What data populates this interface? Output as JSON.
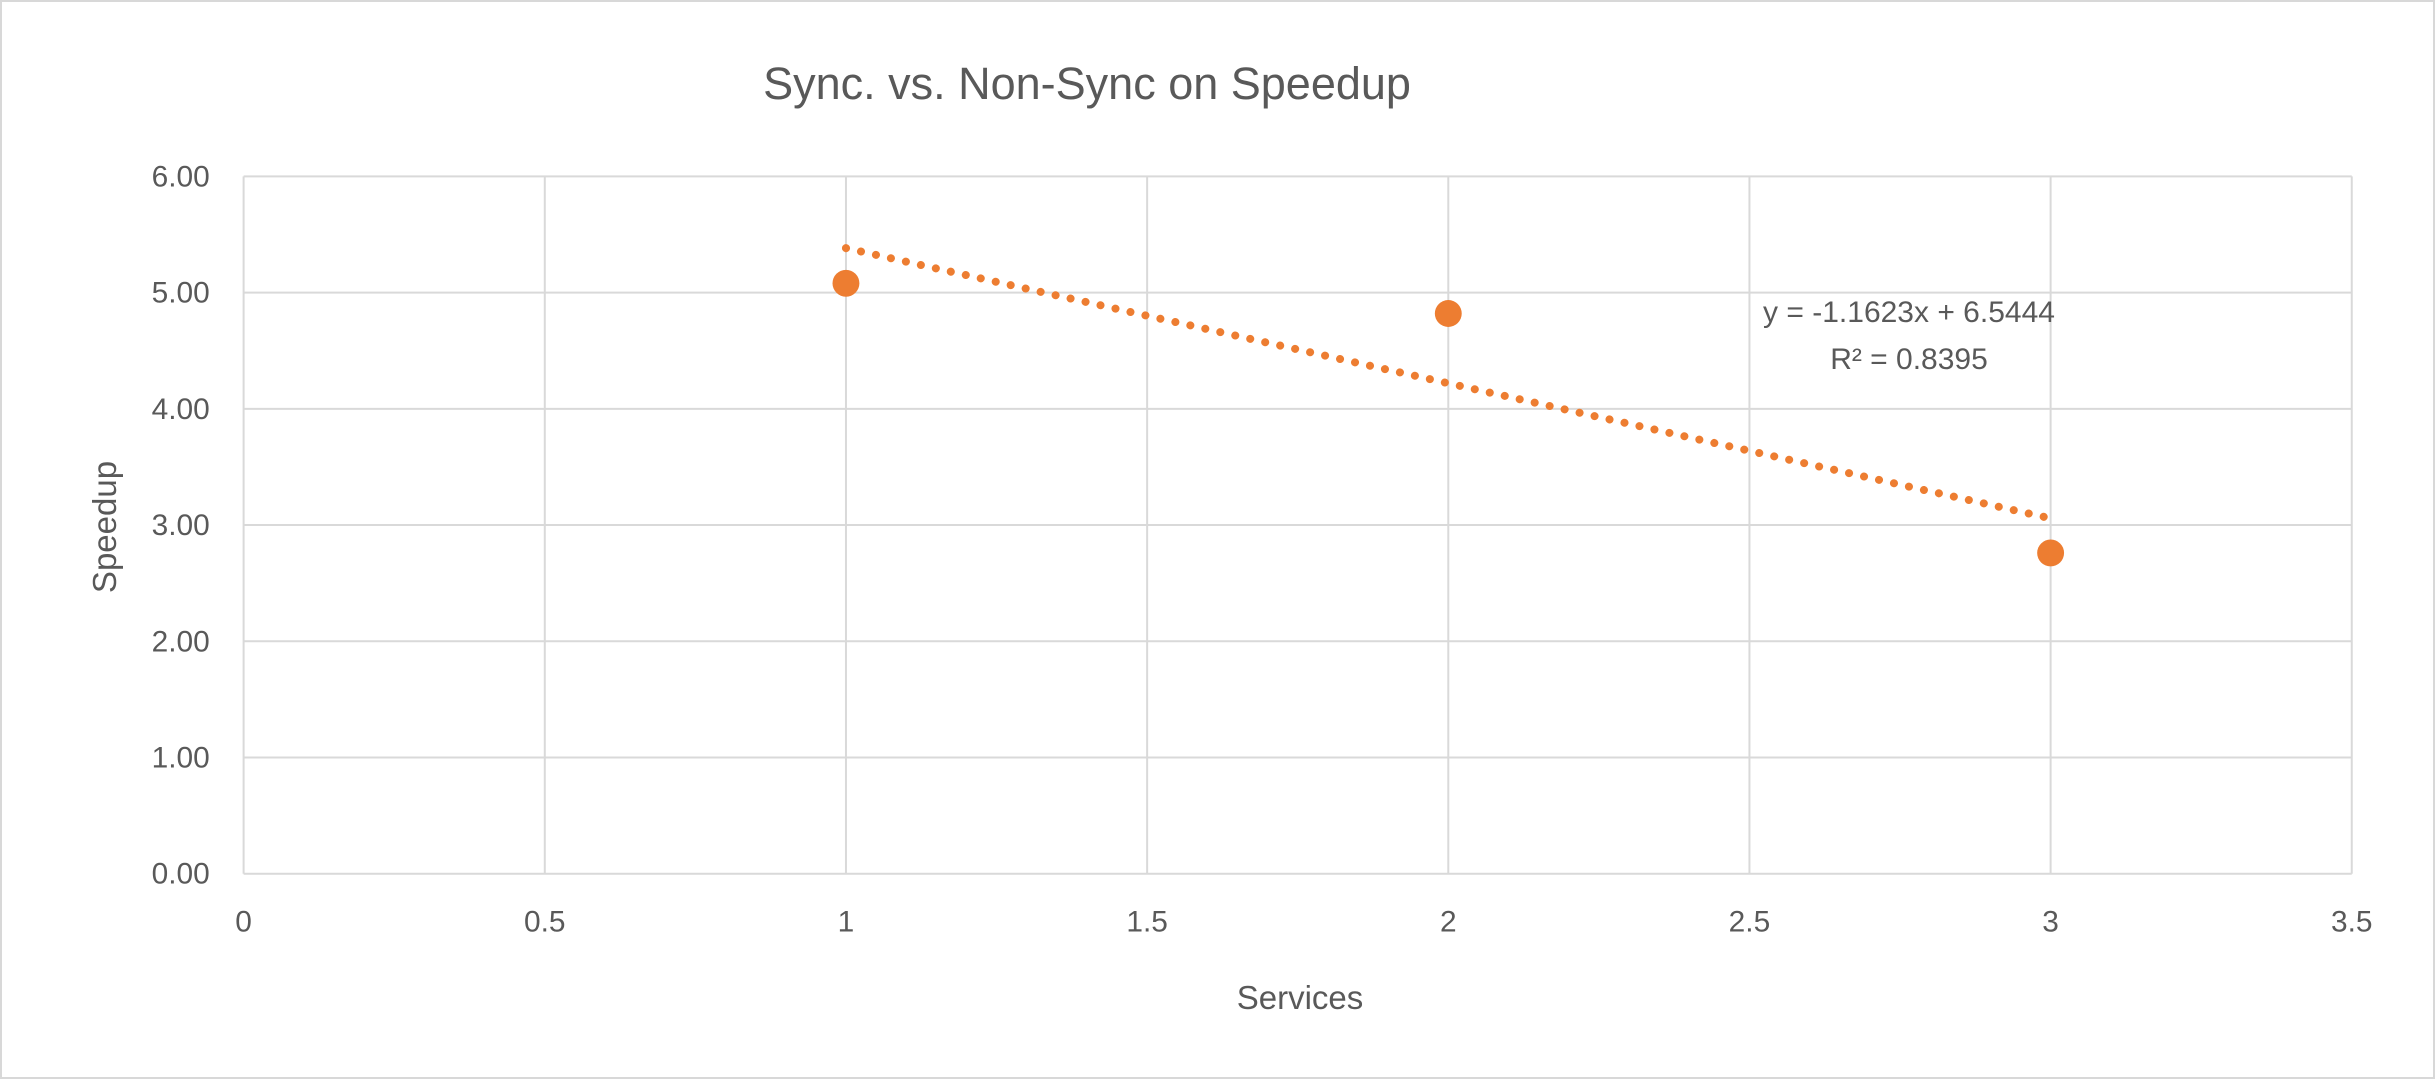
{
  "chart_data": {
    "type": "scatter",
    "title": "Sync. vs. Non-Sync on Speedup",
    "xlabel": "Services",
    "ylabel": "Speedup",
    "points": [
      {
        "x": 1,
        "y": 5.08
      },
      {
        "x": 2,
        "y": 4.82
      },
      {
        "x": 3,
        "y": 2.76
      }
    ],
    "xlim": [
      0,
      3.5
    ],
    "ylim": [
      0,
      6
    ],
    "x_ticks": [
      "0",
      "0.5",
      "1",
      "1.5",
      "2",
      "2.5",
      "3",
      "3.5"
    ],
    "y_ticks": [
      "0.00",
      "1.00",
      "2.00",
      "3.00",
      "4.00",
      "5.00",
      "6.00"
    ],
    "grid": true,
    "legend": "none",
    "trendline": {
      "type": "linear",
      "slope": -1.1623,
      "intercept": 6.5444,
      "r2": 0.8395,
      "x_start": 1,
      "x_end": 3,
      "style": "dotted",
      "equation_label": "y = -1.1623x + 6.5444",
      "r2_label": "R² = 0.8395"
    },
    "colors": {
      "series": "#ED7D31",
      "gridline": "#D9D9D9",
      "text": "#595959",
      "frame": "#D8D8D8",
      "background": "#FFFFFF"
    }
  }
}
